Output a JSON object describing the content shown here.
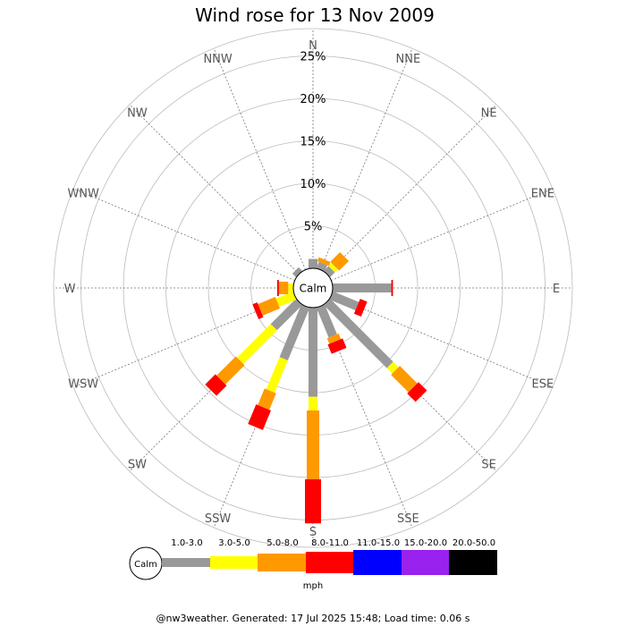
{
  "chart_data": {
    "type": "wind-rose",
    "title": "Wind rose for 13 Nov 2009",
    "directions": [
      "N",
      "NNE",
      "NE",
      "ENE",
      "E",
      "ESE",
      "SE",
      "SSE",
      "S",
      "SSW",
      "SW",
      "WSW",
      "W",
      "WNW",
      "NW",
      "NNW"
    ],
    "radial_ticks": [
      "5%",
      "10%",
      "15%",
      "20%",
      "25%"
    ],
    "radial_max_percent": 25,
    "calm_label": "Calm",
    "speed_unit": "mph",
    "speed_bins": [
      {
        "label": "1.0-3.0",
        "color": "#999999"
      },
      {
        "label": "3.0-5.0",
        "color": "#ffff00"
      },
      {
        "label": "5.0-8.0",
        "color": "#ff9900"
      },
      {
        "label": "8.0-11.0",
        "color": "#ff0000"
      },
      {
        "label": "11.0-15.0",
        "color": "#0000ff"
      },
      {
        "label": "15.0-20.0",
        "color": "#9922ee"
      },
      {
        "label": "20.0-50.0",
        "color": "#000000"
      }
    ],
    "series": [
      {
        "direction": "N",
        "cumulative_percent": [
          1.1,
          1.1,
          1.1,
          1.1,
          1.1,
          1.1,
          1.1
        ]
      },
      {
        "direction": "NNE",
        "cumulative_percent": [
          0.8,
          0.8,
          1.3,
          1.3,
          1.3,
          1.3,
          1.3
        ]
      },
      {
        "direction": "NE",
        "cumulative_percent": [
          0.8,
          1.3,
          2.9,
          2.9,
          2.9,
          2.9,
          2.9
        ]
      },
      {
        "direction": "ENE",
        "cumulative_percent": [
          0.0,
          0.0,
          0.0,
          0.0,
          0.0,
          0.0,
          0.0
        ]
      },
      {
        "direction": "E",
        "cumulative_percent": [
          6.9,
          6.9,
          6.9,
          7.1,
          7.1,
          7.1,
          7.1
        ]
      },
      {
        "direction": "ESE",
        "cumulative_percent": [
          3.3,
          3.3,
          3.3,
          4.2,
          4.2,
          4.2,
          4.2
        ]
      },
      {
        "direction": "SE",
        "cumulative_percent": [
          10.5,
          11.4,
          14.3,
          15.7,
          15.7,
          15.7,
          15.7
        ]
      },
      {
        "direction": "SSE",
        "cumulative_percent": [
          3.8,
          3.8,
          4.5,
          5.7,
          5.7,
          5.7,
          5.7
        ]
      },
      {
        "direction": "S",
        "cumulative_percent": [
          10.5,
          12.1,
          20.2,
          25.4,
          25.4,
          25.4,
          25.4
        ]
      },
      {
        "direction": "SSW",
        "cumulative_percent": [
          6.7,
          10.8,
          12.9,
          15.4,
          15.4,
          15.4,
          15.4
        ]
      },
      {
        "direction": "SW",
        "cumulative_percent": [
          4.2,
          9.8,
          13.0,
          14.7,
          14.7,
          14.7,
          14.7
        ]
      },
      {
        "direction": "WSW",
        "cumulative_percent": [
          0.0,
          2.2,
          4.4,
          5.0,
          5.0,
          5.0,
          5.0
        ]
      },
      {
        "direction": "W",
        "cumulative_percent": [
          0.0,
          0.6,
          1.7,
          1.9,
          1.9,
          1.9,
          1.9
        ]
      },
      {
        "direction": "WNW",
        "cumulative_percent": [
          0.0,
          0.0,
          0.0,
          0.0,
          0.0,
          0.0,
          0.0
        ]
      },
      {
        "direction": "NW",
        "cumulative_percent": [
          0.6,
          0.6,
          0.6,
          0.6,
          0.6,
          0.6,
          0.6
        ]
      },
      {
        "direction": "NNW",
        "cumulative_percent": [
          0.0,
          0.0,
          0.0,
          0.0,
          0.0,
          0.0,
          0.0
        ]
      }
    ],
    "footer": "@nw3weather. Generated: 17 Jul 2025 15:48; Load time: 0.06 s"
  }
}
